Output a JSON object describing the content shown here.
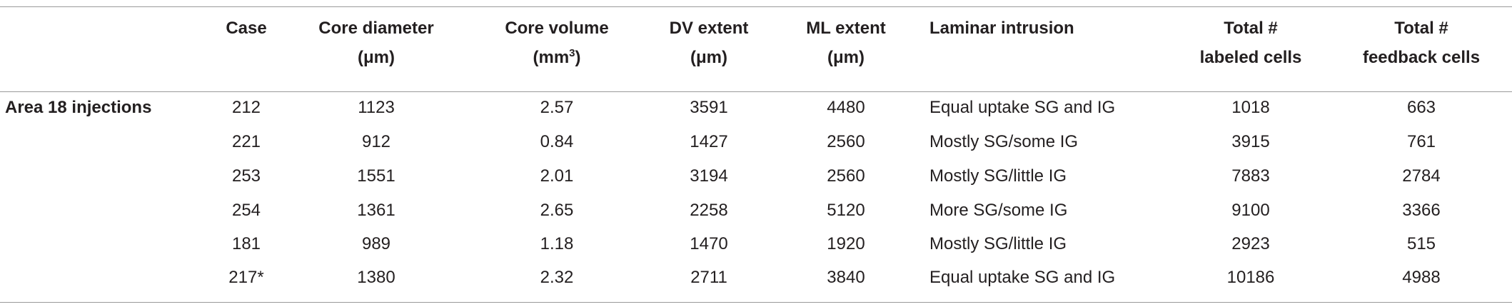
{
  "table": {
    "group_label": "Area 18 injections",
    "columns": [
      [
        [
          "Case"
        ]
      ],
      [
        [
          "Core diameter"
        ],
        [
          "(μm)"
        ]
      ],
      [
        [
          "Core volume"
        ],
        [
          "(mm",
          "3",
          ")"
        ]
      ],
      [
        [
          "DV extent"
        ],
        [
          "(μm)"
        ]
      ],
      [
        [
          "ML extent"
        ],
        [
          "(μm)"
        ]
      ],
      [
        [
          "Laminar intrusion"
        ]
      ],
      [
        [
          "Total #"
        ],
        [
          "labeled cells"
        ]
      ],
      [
        [
          "Total #"
        ],
        [
          "feedback cells"
        ]
      ]
    ],
    "rows": [
      [
        "212",
        1123,
        2.57,
        3591,
        4480,
        "Equal uptake SG and IG",
        1018,
        663
      ],
      [
        "221",
        912,
        0.84,
        1427,
        2560,
        "Mostly SG/some IG",
        3915,
        761
      ],
      [
        "253",
        1551,
        2.01,
        3194,
        2560,
        "Mostly SG/little IG",
        7883,
        2784
      ],
      [
        "254",
        1361,
        2.65,
        2258,
        5120,
        "More SG/some IG",
        9100,
        3366
      ],
      [
        "181",
        989,
        1.18,
        1470,
        1920,
        "Mostly SG/little IG",
        2923,
        515
      ],
      [
        "217*",
        1380,
        2.32,
        2711,
        3840,
        "Equal uptake SG and IG",
        10186,
        4988
      ]
    ]
  }
}
